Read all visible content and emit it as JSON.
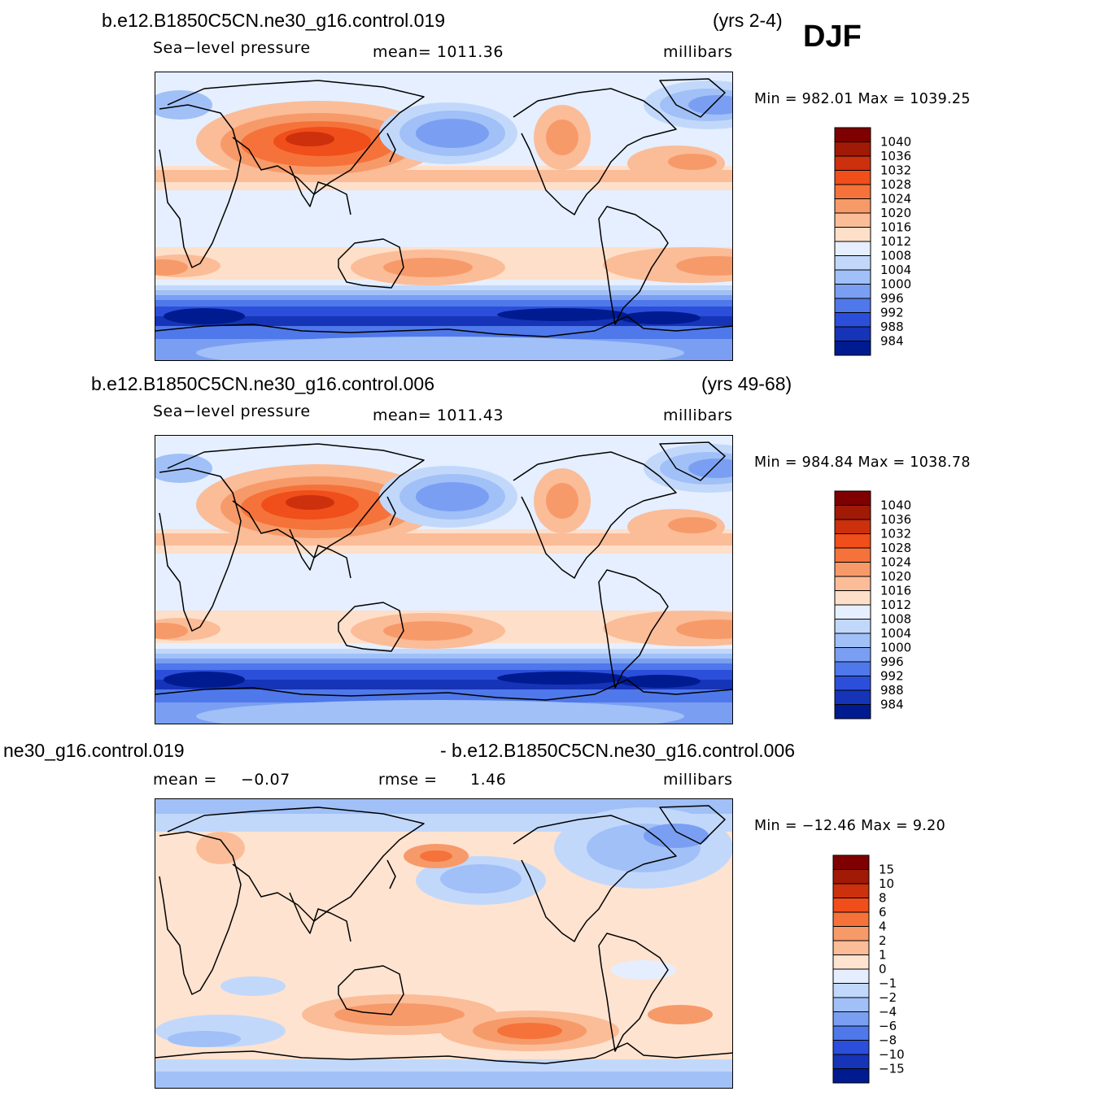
{
  "season": "DJF",
  "units_text": "millibars",
  "panels": [
    {
      "case": "b.e12.B1850C5CN.ne30_g16.control.019",
      "years": "(yrs 2-4)",
      "variable": "Sea−level pressure",
      "mean_text": "mean=  1011.36",
      "units": "millibars",
      "minmax_text": "Min  =  982.01  Max  =  1039.25",
      "colorbar_labels": [
        "1040",
        "1036",
        "1032",
        "1028",
        "1024",
        "1020",
        "1016",
        "1012",
        "1008",
        "1004",
        "1000",
        "996",
        "992",
        "988",
        "984"
      ]
    },
    {
      "case": "b.e12.B1850C5CN.ne30_g16.control.006",
      "years": "(yrs 49-68)",
      "variable": "Sea−level pressure",
      "mean_text": "mean=  1011.43",
      "units": "millibars",
      "minmax_text": "Min  =  984.84  Max  =  1038.78",
      "colorbar_labels": [
        "1040",
        "1036",
        "1032",
        "1028",
        "1024",
        "1020",
        "1016",
        "1012",
        "1008",
        "1004",
        "1000",
        "996",
        "992",
        "988",
        "984"
      ]
    },
    {
      "case_left": "ne30_g16.control.019",
      "case_right": "- b.e12.B1850C5CN.ne30_g16.control.006",
      "mean_label": "mean  =",
      "mean_value": "−0.07",
      "rmse_label": "rmse  =",
      "rmse_value": "1.46",
      "units": "millibars",
      "minmax_text": "Min  =  −12.46  Max  =     9.20",
      "colorbar_labels": [
        "15",
        "10",
        "8",
        "6",
        "4",
        "2",
        "1",
        "0",
        "−1",
        "−2",
        "−4",
        "−6",
        "−8",
        "−10",
        "−15"
      ]
    }
  ],
  "colors": {
    "abs_scale": [
      "#7f0000",
      "#a01a05",
      "#cc300d",
      "#f04e1a",
      "#f5733a",
      "#f79a69",
      "#fbbc98",
      "#fedfc9",
      "#e5efff",
      "#c2d8fb",
      "#a0c0f7",
      "#7a9ff2",
      "#4f78ea",
      "#2b4fdb",
      "#1634b8",
      "#001b90"
    ],
    "diff_scale": [
      "#7f0000",
      "#a01a05",
      "#cc300d",
      "#f04e1a",
      "#f5733a",
      "#f79a69",
      "#fbbc98",
      "#fee3d0",
      "#e4eeff",
      "#c2d8fb",
      "#a0c0f7",
      "#7a9ff2",
      "#4f78ea",
      "#2b4fdb",
      "#1634b8",
      "#001b90"
    ]
  }
}
